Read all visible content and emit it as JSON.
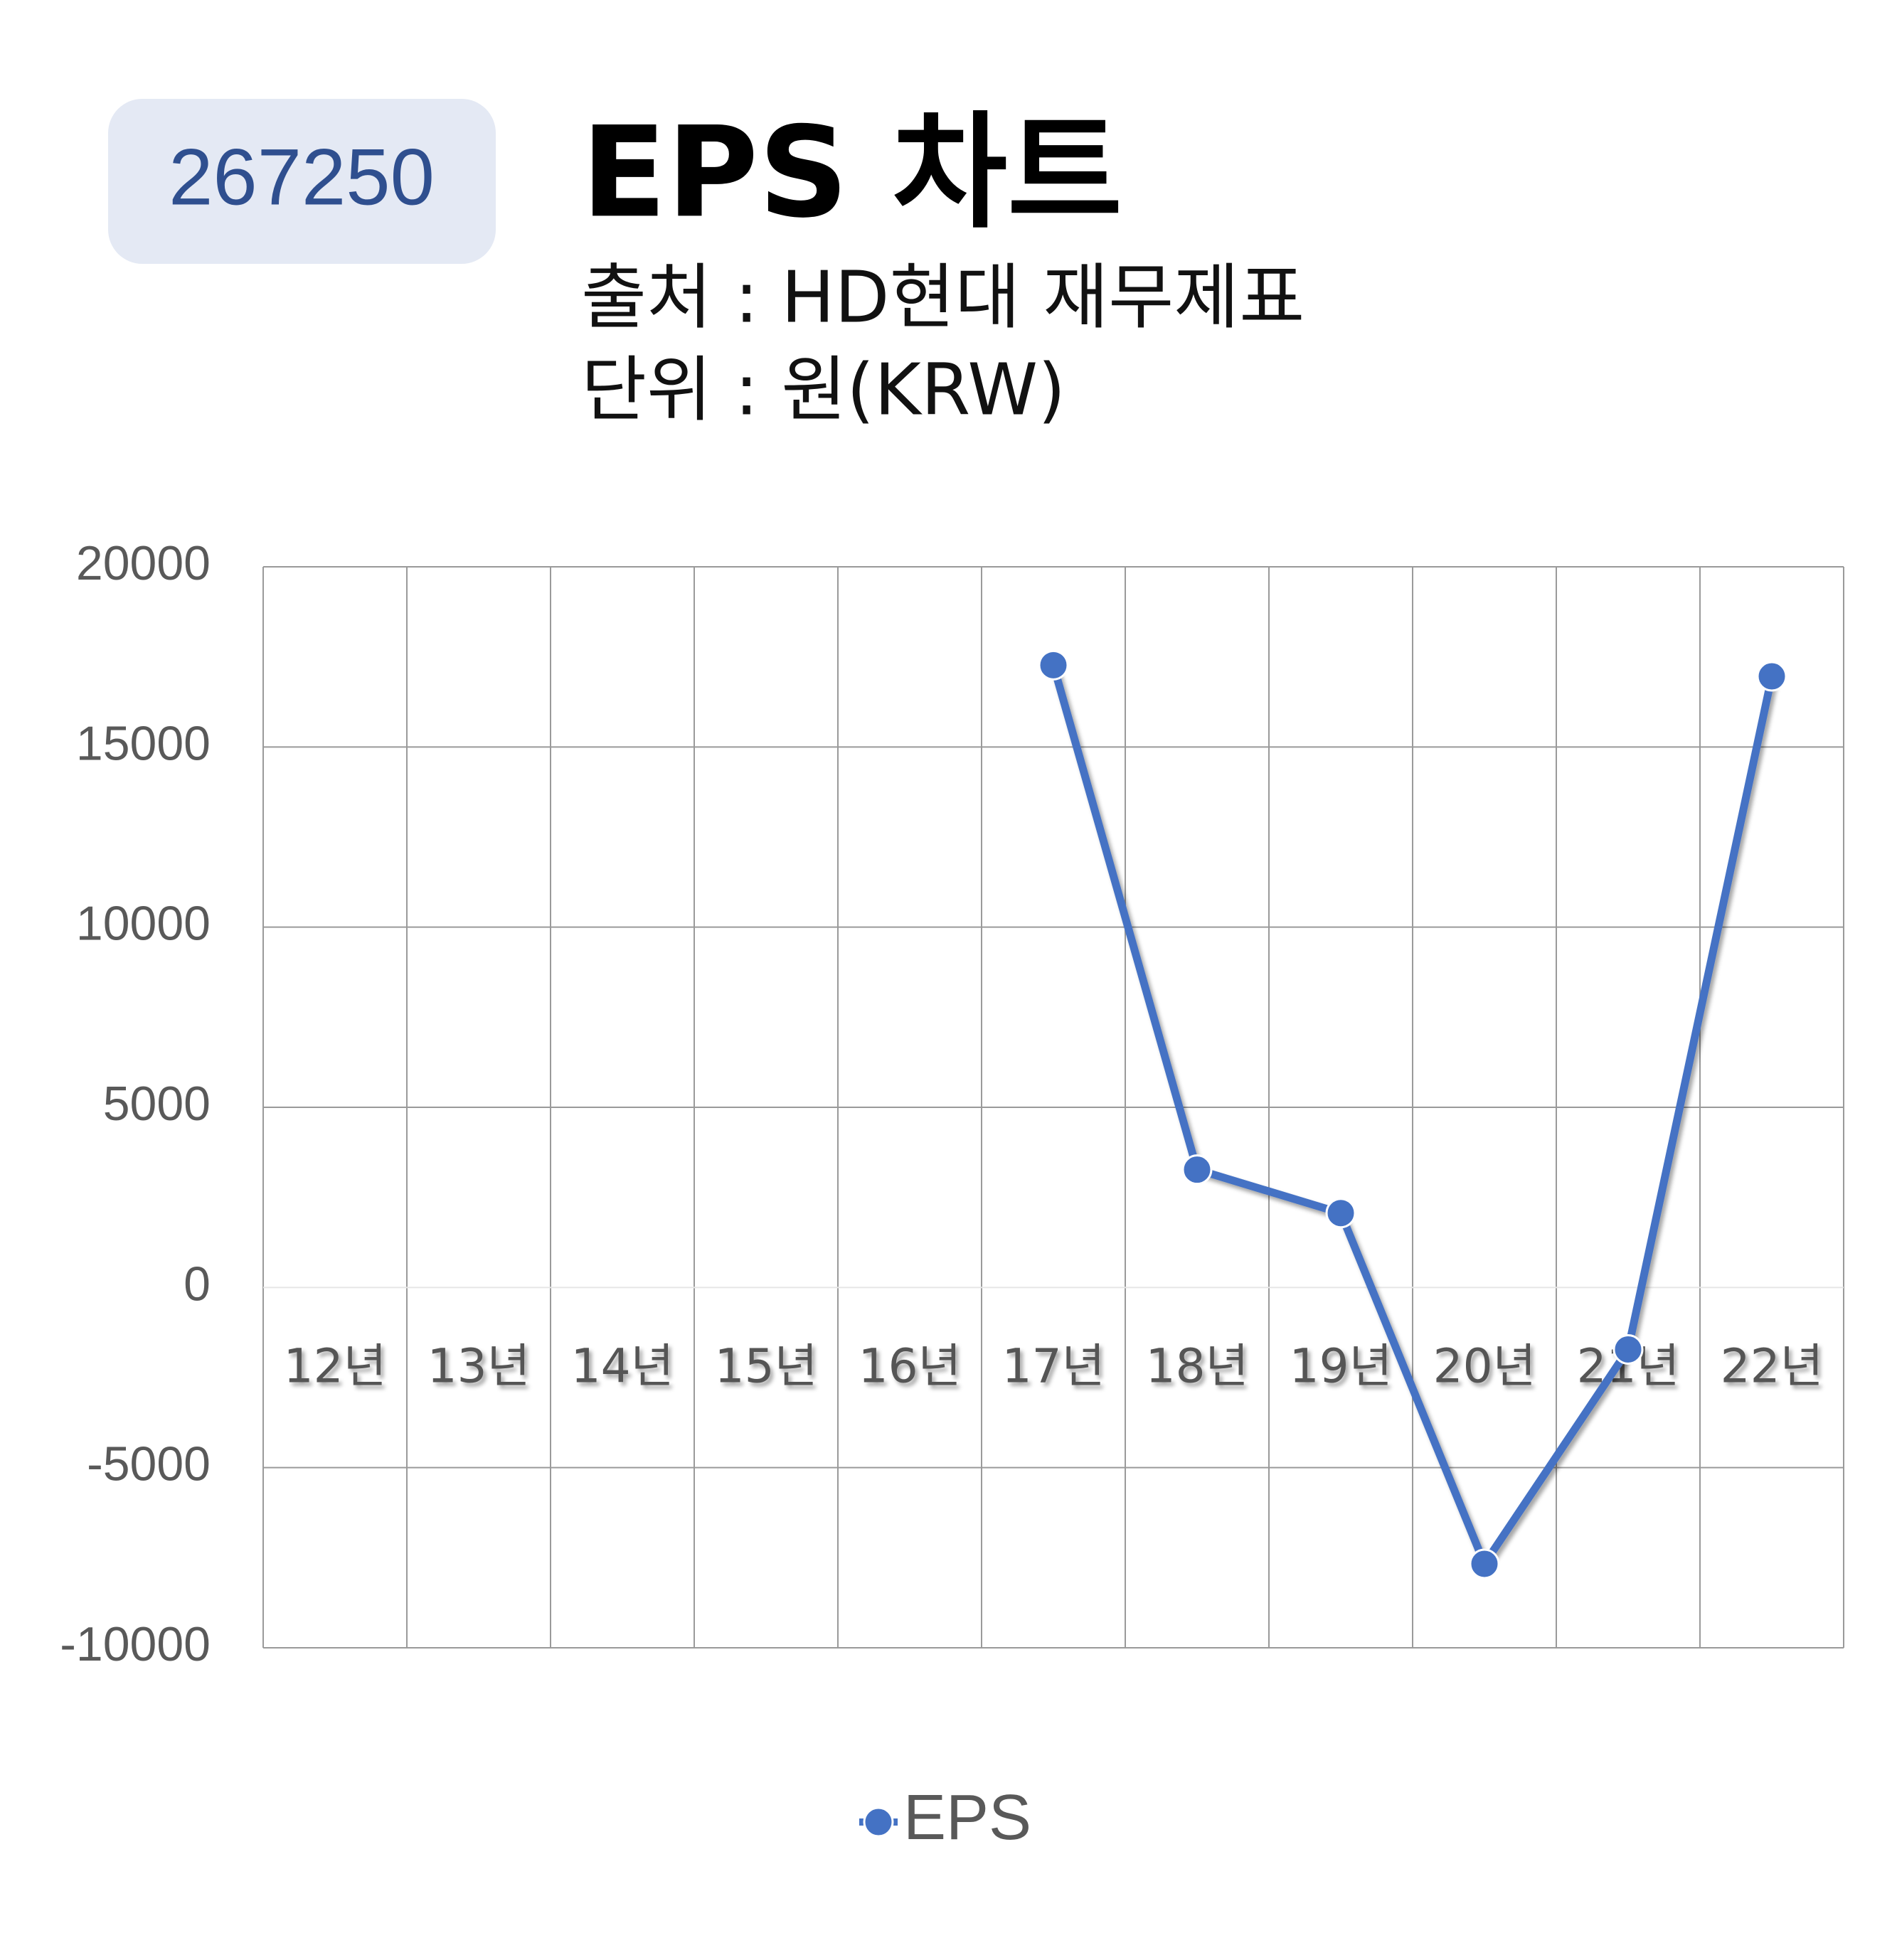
{
  "code": "267250",
  "chart_data": {
    "type": "line",
    "title": "EPS 차트",
    "source": "출처 : HD현대 재무제표",
    "unit": "단위 : 원(KRW)",
    "categories": [
      "12년",
      "13년",
      "14년",
      "15년",
      "16년",
      "17년",
      "18년",
      "19년",
      "20년",
      "21년",
      "22년"
    ],
    "series": [
      {
        "name": "EPS",
        "color": "#4472c4",
        "values": [
          null,
          null,
          null,
          null,
          null,
          17270,
          3270,
          2065,
          -7670,
          -1720,
          16960
        ]
      }
    ],
    "ylim": [
      -10000,
      20000
    ],
    "yticks": [
      -10000,
      -5000,
      0,
      5000,
      10000,
      15000,
      20000
    ],
    "grid": true,
    "legend": "bottom"
  }
}
